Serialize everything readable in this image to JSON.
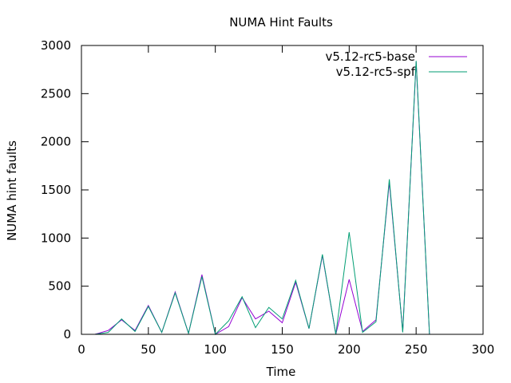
{
  "chart_data": {
    "type": "line",
    "title": "NUMA Hint Faults",
    "xlabel": "Time",
    "ylabel": "NUMA hint faults",
    "xlim": [
      0,
      300
    ],
    "ylim": [
      0,
      3000
    ],
    "xticks": [
      0,
      50,
      100,
      150,
      200,
      250,
      300
    ],
    "yticks": [
      0,
      500,
      1000,
      1500,
      2000,
      2500,
      3000
    ],
    "grid": false,
    "legend_position": "top-right",
    "series": [
      {
        "name": "v5.12-rc5-base",
        "color": "#9400d3",
        "x": [
          10,
          20,
          30,
          40,
          50,
          60,
          70,
          80,
          90,
          100,
          110,
          120,
          130,
          140,
          150,
          160,
          170,
          180,
          190,
          200,
          210,
          220,
          230,
          240,
          250,
          260
        ],
        "y": [
          0,
          40,
          150,
          40,
          300,
          20,
          440,
          10,
          620,
          0,
          80,
          380,
          160,
          240,
          120,
          540,
          60,
          820,
          0,
          570,
          30,
          150,
          1580,
          30,
          2830,
          0
        ]
      },
      {
        "name": "v5.12-rc5-spf",
        "color": "#009e73",
        "x": [
          10,
          20,
          30,
          40,
          50,
          60,
          70,
          80,
          90,
          100,
          110,
          120,
          130,
          140,
          150,
          160,
          170,
          180,
          190,
          200,
          210,
          220,
          230,
          240,
          250,
          260
        ],
        "y": [
          0,
          20,
          160,
          30,
          290,
          20,
          430,
          10,
          600,
          0,
          140,
          390,
          70,
          280,
          160,
          560,
          60,
          830,
          0,
          1060,
          20,
          130,
          1610,
          20,
          2840,
          0
        ]
      }
    ]
  }
}
